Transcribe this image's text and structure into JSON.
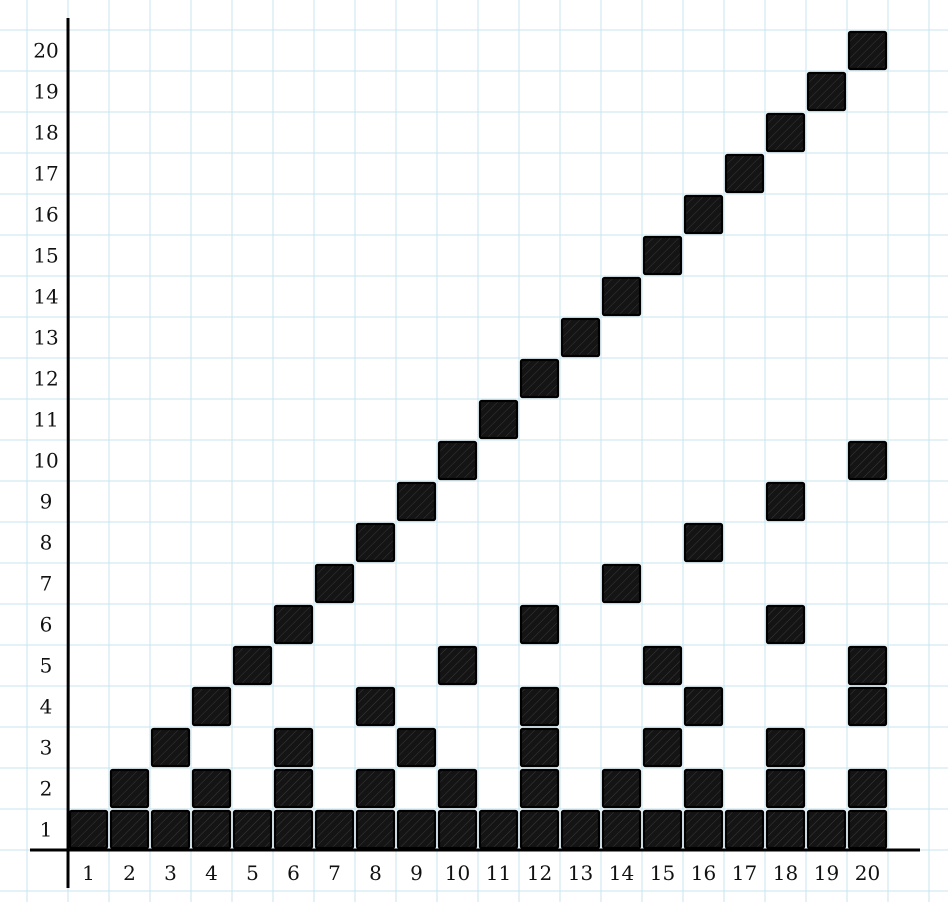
{
  "chart_data": {
    "type": "heatmap",
    "title": "",
    "xlabel": "",
    "ylabel": "",
    "xlim": [
      1,
      20
    ],
    "ylim": [
      1,
      20
    ],
    "grid": true,
    "x_ticks": [
      "1",
      "2",
      "3",
      "4",
      "5",
      "6",
      "7",
      "8",
      "9",
      "10",
      "11",
      "12",
      "13",
      "14",
      "15",
      "16",
      "17",
      "18",
      "19",
      "20"
    ],
    "y_ticks": [
      "1",
      "2",
      "3",
      "4",
      "5",
      "6",
      "7",
      "8",
      "9",
      "10",
      "11",
      "12",
      "13",
      "14",
      "15",
      "16",
      "17",
      "18",
      "19",
      "20"
    ],
    "columns": [
      {
        "x": 1,
        "filled_y": [
          1
        ]
      },
      {
        "x": 2,
        "filled_y": [
          1,
          2
        ]
      },
      {
        "x": 3,
        "filled_y": [
          1,
          3
        ]
      },
      {
        "x": 4,
        "filled_y": [
          1,
          2,
          4
        ]
      },
      {
        "x": 5,
        "filled_y": [
          1,
          5
        ]
      },
      {
        "x": 6,
        "filled_y": [
          1,
          2,
          3,
          6
        ]
      },
      {
        "x": 7,
        "filled_y": [
          1,
          7
        ]
      },
      {
        "x": 8,
        "filled_y": [
          1,
          2,
          4,
          8
        ]
      },
      {
        "x": 9,
        "filled_y": [
          1,
          3,
          9
        ]
      },
      {
        "x": 10,
        "filled_y": [
          1,
          2,
          5,
          10
        ]
      },
      {
        "x": 11,
        "filled_y": [
          1,
          11
        ]
      },
      {
        "x": 12,
        "filled_y": [
          1,
          2,
          3,
          4,
          6,
          12
        ]
      },
      {
        "x": 13,
        "filled_y": [
          1,
          13
        ]
      },
      {
        "x": 14,
        "filled_y": [
          1,
          2,
          7,
          14
        ]
      },
      {
        "x": 15,
        "filled_y": [
          1,
          3,
          5,
          15
        ]
      },
      {
        "x": 16,
        "filled_y": [
          1,
          2,
          4,
          8,
          16
        ]
      },
      {
        "x": 17,
        "filled_y": [
          1,
          17
        ]
      },
      {
        "x": 18,
        "filled_y": [
          1,
          2,
          3,
          6,
          9,
          18
        ]
      },
      {
        "x": 19,
        "filled_y": [
          1,
          19
        ]
      },
      {
        "x": 20,
        "filled_y": [
          1,
          2,
          4,
          5,
          10,
          20
        ]
      }
    ]
  }
}
